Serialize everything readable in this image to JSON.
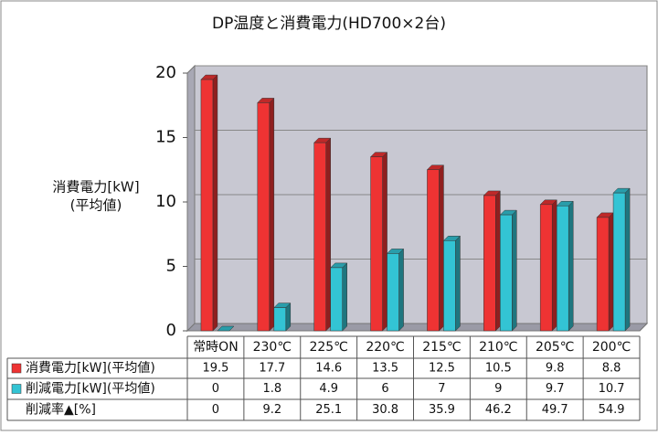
{
  "chart_data": {
    "type": "bar",
    "title": "DP温度と消費電力(HD700×2台)",
    "y_label": [
      "消費電力[kW]",
      "(平均値)"
    ],
    "categories": [
      "常時ON",
      "230℃",
      "225℃",
      "220℃",
      "215℃",
      "210℃",
      "205℃",
      "200℃"
    ],
    "series": [
      {
        "name": "消費電力[kW](平均値)",
        "color": "#ee3333",
        "values": [
          19.5,
          17.7,
          14.6,
          13.5,
          12.5,
          10.5,
          9.8,
          8.8
        ]
      },
      {
        "name": "削減電力[kW](平均値)",
        "color": "#33c4d4",
        "values": [
          0,
          1.8,
          4.9,
          6,
          7,
          9,
          9.7,
          10.7
        ]
      }
    ],
    "table_rows": [
      {
        "name": "削減率▲[%]",
        "values": [
          0,
          9.2,
          25.1,
          30.8,
          35.9,
          46.2,
          49.7,
          54.9
        ]
      }
    ],
    "ylim": [
      0,
      20
    ],
    "yticks": [
      0,
      5,
      10,
      15,
      20
    ],
    "grid": true
  }
}
